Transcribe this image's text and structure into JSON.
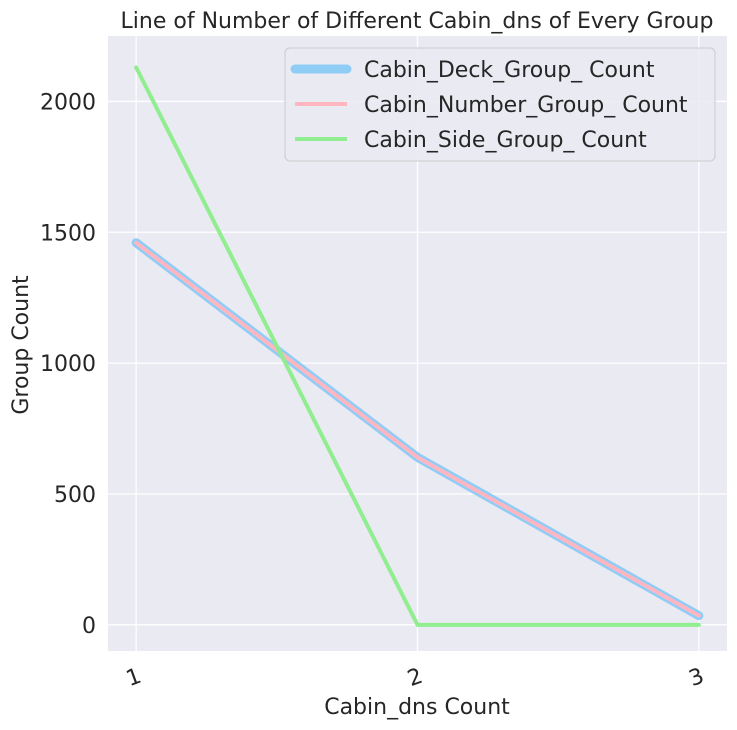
{
  "chart_data": {
    "type": "line",
    "title": "Line of Number of Different Cabin_dns of Every Group",
    "xlabel": "Cabin_dns Count",
    "ylabel": "Group Count",
    "x": [
      1,
      2,
      3
    ],
    "x_tick_labels": [
      "1",
      "2",
      "3"
    ],
    "y_ticks": [
      0,
      500,
      1000,
      1500,
      2000
    ],
    "xlim": [
      0.9,
      3.1
    ],
    "ylim": [
      -100,
      2250
    ],
    "grid": true,
    "legend_position": "top-right",
    "series": [
      {
        "name": "Cabin_Deck_Group_ Count",
        "values": [
          1460,
          640,
          35
        ],
        "color": "#8fcdf7"
      },
      {
        "name": "Cabin_Number_Group_ Count",
        "values": [
          1460,
          640,
          35
        ],
        "color": "#ffb6c1"
      },
      {
        "name": "Cabin_Side_Group_ Count",
        "values": [
          2130,
          0,
          0
        ],
        "color": "#90ee90"
      }
    ]
  }
}
